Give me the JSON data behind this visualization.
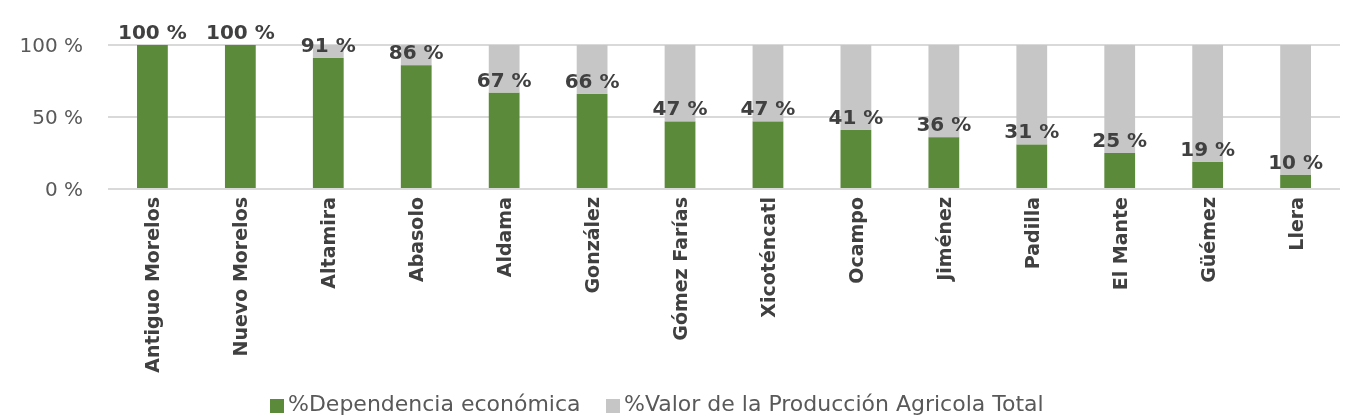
{
  "chart_data": {
    "type": "bar",
    "stacked": true,
    "categories": [
      "Antiguo Morelos",
      "Nuevo Morelos",
      "Altamira",
      "Abasolo",
      "Aldama",
      "González",
      "Gómez Farías",
      "Xicoténcatl",
      "Ocampo",
      "Jiménez",
      "Padilla",
      "El Mante",
      "Güémez",
      "Llera"
    ],
    "series": [
      {
        "name": "%Dependencia económica",
        "color": "#5b8a3a",
        "values": [
          100,
          100,
          91,
          86,
          67,
          66,
          47,
          47,
          41,
          36,
          31,
          25,
          19,
          10
        ],
        "value_labels": [
          "100 %",
          "100 %",
          "91 %",
          "86 %",
          "67 %",
          "66 %",
          "47 %",
          "47 %",
          "41 %",
          "36 %",
          "31 %",
          "25 %",
          "19 %",
          "10 %"
        ]
      },
      {
        "name": "%Valor de la Producción Agricola Total",
        "color": "#c6c6c6",
        "values": [
          0,
          0,
          9,
          14,
          33,
          34,
          53,
          53,
          59,
          64,
          69,
          75,
          81,
          90
        ]
      }
    ],
    "ylim": [
      0,
      100
    ],
    "yticks": [
      {
        "value": 0,
        "label": "0 %"
      },
      {
        "value": 50,
        "label": "50 %"
      },
      {
        "value": 100,
        "label": "100 %"
      }
    ],
    "grid": "y",
    "legend": "bottom"
  }
}
